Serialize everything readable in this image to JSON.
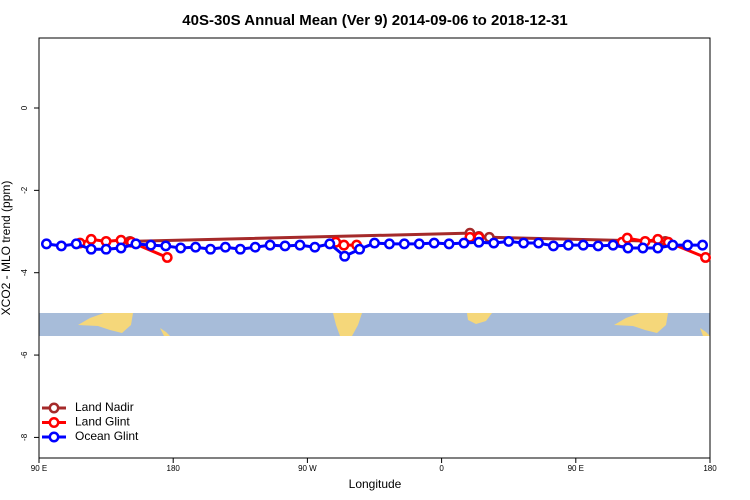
{
  "chart_data": {
    "type": "line",
    "title": "40S-30S Annual Mean (Ver 9)   2014-09-06 to 2018-12-31",
    "x_label": "Longitude",
    "y_label": "XCO2 - MLO trend (ppm)",
    "xlim": [
      90,
      540
    ],
    "xticks": [
      {
        "value": 90,
        "label": "90 E"
      },
      {
        "value": 180,
        "label": "180"
      },
      {
        "value": 270,
        "label": "90 W"
      },
      {
        "value": 360,
        "label": "0"
      },
      {
        "value": 450,
        "label": "90 E"
      },
      {
        "value": 540,
        "label": "180"
      }
    ],
    "ylim": [
      -8.5,
      1.7
    ],
    "yticks": [
      0,
      -2,
      -4,
      -6,
      -8
    ],
    "legend": "bottom-left",
    "series": [
      {
        "name": "Land Nadir",
        "color": "#a52a2a",
        "x": [
          151,
          379,
          385,
          392,
          510
        ],
        "values": [
          -3.24,
          -3.04,
          -3.12,
          -3.14,
          -3.24
        ]
      },
      {
        "name": "Land Glint",
        "color": "#ff0000",
        "x": [
          117.5,
          125,
          135,
          145,
          152,
          176,
          240,
          289,
          294.5,
          303,
          340,
          379,
          385,
          440,
          481,
          484.5,
          496.5,
          505,
          512,
          537
        ],
        "values": [
          -3.28,
          -3.19,
          -3.24,
          -3.21,
          -3.26,
          -3.63,
          null,
          -3.26,
          -3.33,
          -3.33,
          null,
          -3.14,
          -3.14,
          null,
          -3.26,
          -3.16,
          -3.24,
          -3.19,
          -3.26,
          -3.63
        ]
      },
      {
        "name": "Ocean Glint",
        "color": "#0000ff",
        "x": [
          95,
          105,
          115,
          125,
          135,
          145,
          155,
          165,
          175,
          185,
          195,
          205,
          215,
          225,
          235,
          245,
          255,
          265,
          275,
          285,
          295,
          305,
          315,
          325,
          335,
          345,
          355,
          365,
          375,
          385,
          395,
          405,
          415,
          425,
          435,
          445,
          455,
          465,
          475,
          485,
          495,
          505,
          515,
          525,
          535
        ],
        "values": [
          -3.3,
          -3.35,
          -3.3,
          -3.43,
          -3.43,
          -3.4,
          -3.3,
          -3.33,
          -3.35,
          -3.4,
          -3.38,
          -3.43,
          -3.38,
          -3.43,
          -3.38,
          -3.33,
          -3.35,
          -3.33,
          -3.38,
          -3.3,
          -3.6,
          -3.43,
          -3.28,
          -3.3,
          -3.3,
          -3.3,
          -3.28,
          -3.3,
          -3.28,
          -3.26,
          -3.28,
          -3.24,
          -3.28,
          -3.28,
          -3.35,
          -3.33,
          -3.33,
          -3.35,
          -3.33,
          -3.4,
          -3.4,
          -3.4,
          -3.33,
          -3.33,
          -3.33
        ]
      }
    ]
  }
}
